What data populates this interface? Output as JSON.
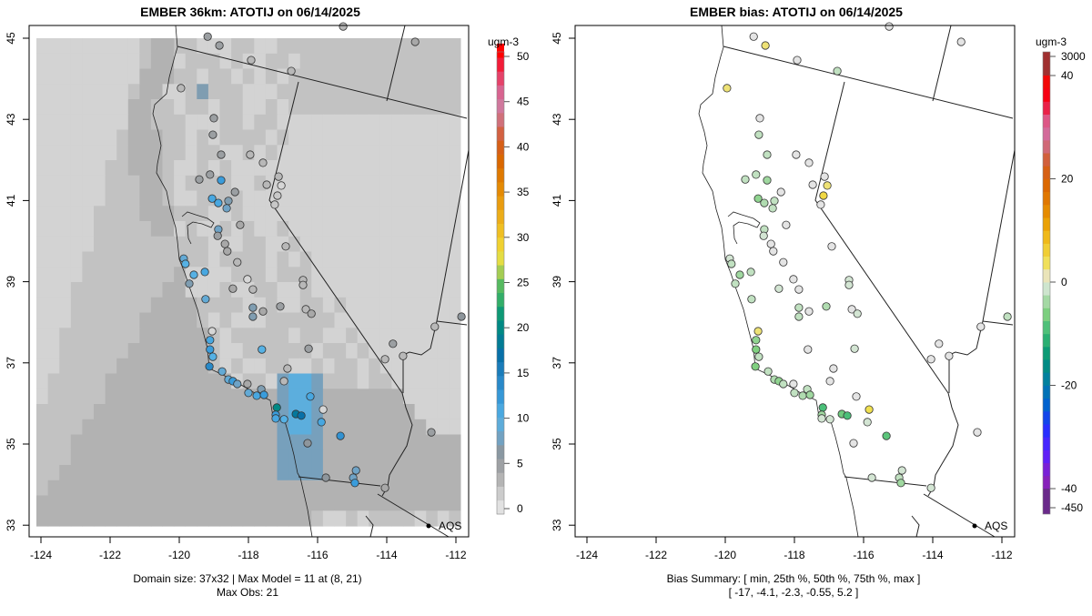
{
  "panels": {
    "left": {
      "title": "EMBER 36km: ATOTIJ on 06/14/2025",
      "colorbar_unit": "ugm-3",
      "footer_line1": "Domain size: 37x32 | Max Model = 11 at (8, 21)",
      "footer_line2": "Max Obs: 21"
    },
    "right": {
      "title": "EMBER bias: ATOTIJ on 06/14/2025",
      "colorbar_unit": "ugm-3",
      "footer_line1": "Bias Summary: [ min, 25th %, 50th %, 75th %, max ]",
      "footer_line2": "[ -17,   -4.1,   -2.3,   -0.55,   5.2 ]"
    }
  },
  "legend_label": "AQS",
  "chart_data": [
    {
      "type": "heatmap",
      "title": "EMBER 36km: ATOTIJ on 06/14/2025",
      "xlabel": "",
      "ylabel": "",
      "x_ticks": [
        "-124",
        "-122",
        "-120",
        "-118",
        "-116",
        "-114",
        "-112"
      ],
      "y_ticks": [
        "33",
        "35",
        "37",
        "39",
        "41",
        "43",
        "45"
      ],
      "xlim": [
        -124.2,
        -111.8
      ],
      "ylim": [
        32.9,
        45.3
      ],
      "grid_size": [
        37,
        32
      ],
      "max_model": 11,
      "max_obs": 21,
      "colorbar": {
        "label": "ugm-3",
        "range": [
          0,
          50
        ],
        "ticks": [
          "0",
          "5",
          "10",
          "15",
          "20",
          "25",
          "30",
          "35",
          "40",
          "45",
          "50"
        ]
      },
      "stations_fields": [
        "lon",
        "lat",
        "obs",
        "bias"
      ],
      "stations": [
        [
          -119.18,
          45.04,
          5,
          0
        ],
        [
          -118.84,
          44.82,
          5,
          3
        ],
        [
          -117.92,
          44.46,
          3,
          0
        ],
        [
          -116.76,
          44.19,
          3,
          -2
        ],
        [
          -115.26,
          45.29,
          3,
          0
        ],
        [
          -113.18,
          44.91,
          4,
          0
        ],
        [
          -119.95,
          43.77,
          3,
          3
        ],
        [
          -119.0,
          43.03,
          5,
          0
        ],
        [
          -119.03,
          42.62,
          5,
          -2
        ],
        [
          -118.79,
          42.13,
          5,
          -2
        ],
        [
          -117.95,
          42.13,
          3,
          0
        ],
        [
          -117.58,
          41.93,
          3,
          0
        ],
        [
          -119.42,
          41.52,
          5,
          -2
        ],
        [
          -119.11,
          41.64,
          5,
          -2
        ],
        [
          -118.79,
          41.5,
          12,
          -4
        ],
        [
          -117.13,
          41.59,
          3,
          0
        ],
        [
          -117.05,
          41.37,
          1,
          3
        ],
        [
          -117.16,
          41.12,
          2,
          5
        ],
        [
          -117.24,
          40.9,
          2,
          0
        ],
        [
          -117.47,
          41.39,
          3,
          0
        ],
        [
          -119.05,
          41.05,
          11,
          -5
        ],
        [
          -118.87,
          40.94,
          11,
          -3
        ],
        [
          -118.39,
          41.21,
          5,
          0
        ],
        [
          -118.58,
          40.99,
          7,
          -2
        ],
        [
          -118.63,
          40.81,
          8,
          -2
        ],
        [
          -118.24,
          40.4,
          4,
          0
        ],
        [
          -118.87,
          40.29,
          8,
          -2
        ],
        [
          -118.89,
          40.13,
          5,
          -1
        ],
        [
          -118.68,
          39.93,
          4,
          0
        ],
        [
          -118.61,
          39.75,
          4,
          0
        ],
        [
          -118.32,
          39.48,
          3,
          0
        ],
        [
          -116.92,
          39.87,
          3,
          0
        ],
        [
          -119.87,
          39.57,
          9,
          -1
        ],
        [
          -119.82,
          39.44,
          10,
          -2
        ],
        [
          -119.58,
          39.17,
          10,
          -4
        ],
        [
          -119.26,
          39.24,
          11,
          -2
        ],
        [
          -119.71,
          38.95,
          7,
          -2
        ],
        [
          -118.03,
          39.06,
          1,
          0
        ],
        [
          -118.45,
          38.83,
          4,
          -1
        ],
        [
          -117.87,
          38.81,
          3,
          0
        ],
        [
          -119.24,
          38.57,
          9,
          -2
        ],
        [
          -116.42,
          39.04,
          3,
          -1
        ],
        [
          -116.42,
          38.92,
          3,
          -1
        ],
        [
          -117.87,
          38.36,
          7,
          -2
        ],
        [
          -117.58,
          38.27,
          4,
          0
        ],
        [
          -117.87,
          38.14,
          7,
          -2
        ],
        [
          -117.08,
          38.39,
          5,
          -3
        ],
        [
          -116.34,
          38.32,
          3,
          0
        ],
        [
          -116.18,
          38.21,
          4,
          -1
        ],
        [
          -119.05,
          37.78,
          1,
          3
        ],
        [
          -119.11,
          37.56,
          11,
          -5
        ],
        [
          -119.11,
          37.33,
          12,
          -6
        ],
        [
          -119.03,
          37.15,
          10,
          -2
        ],
        [
          -119.13,
          36.91,
          14,
          -6
        ],
        [
          -118.76,
          36.79,
          9,
          -2
        ],
        [
          -117.61,
          37.33,
          10,
          0
        ],
        [
          -116.26,
          37.35,
          5,
          -1
        ],
        [
          -116.87,
          36.86,
          3,
          0
        ],
        [
          -116.97,
          36.55,
          3,
          0
        ],
        [
          -118.58,
          36.59,
          9,
          -3
        ],
        [
          -118.45,
          36.55,
          12,
          -5
        ],
        [
          -118.32,
          36.48,
          8,
          -2
        ],
        [
          -118.03,
          36.48,
          4,
          0
        ],
        [
          -118.0,
          36.26,
          9,
          -2
        ],
        [
          -117.63,
          36.35,
          7,
          -2
        ],
        [
          -117.76,
          36.19,
          11,
          -3
        ],
        [
          -117.55,
          36.21,
          12,
          -4
        ],
        [
          -116.21,
          36.17,
          11,
          0
        ],
        [
          -117.18,
          35.9,
          20,
          -9
        ],
        [
          -117.21,
          35.72,
          12,
          -4
        ],
        [
          -117.21,
          35.63,
          11,
          -1
        ],
        [
          -116.97,
          35.61,
          10,
          -1
        ],
        [
          -116.63,
          35.74,
          18,
          -7
        ],
        [
          -116.47,
          35.7,
          17,
          -9
        ],
        [
          -115.84,
          35.85,
          1,
          4
        ],
        [
          -115.89,
          35.54,
          11,
          -1
        ],
        [
          -115.34,
          35.2,
          13,
          -8
        ],
        [
          -116.29,
          35.02,
          6,
          0
        ],
        [
          -115.76,
          34.17,
          6,
          -1
        ],
        [
          -114.89,
          34.35,
          8,
          -1
        ],
        [
          -114.97,
          34.17,
          8,
          -2
        ],
        [
          -114.92,
          34.04,
          12,
          -4
        ],
        [
          -114.05,
          33.92,
          4,
          -1
        ],
        [
          -112.71,
          35.29,
          5,
          0
        ],
        [
          -111.84,
          38.14,
          6,
          -2
        ],
        [
          -112.61,
          37.89,
          3,
          0
        ],
        [
          -113.82,
          37.47,
          5,
          0
        ],
        [
          -114.05,
          37.09,
          3,
          0
        ],
        [
          -113.53,
          37.17,
          3,
          0
        ]
      ]
    },
    {
      "type": "scatter",
      "title": "EMBER bias: ATOTIJ on 06/14/2025",
      "x_ticks": [
        "-124",
        "-122",
        "-120",
        "-118",
        "-116",
        "-114",
        "-112"
      ],
      "y_ticks": [
        "33",
        "35",
        "37",
        "39",
        "41",
        "43",
        "45"
      ],
      "colorbar": {
        "label": "ugm-3",
        "ticks": [
          "-450",
          "-40",
          "-20",
          "0",
          "20",
          "40",
          "3000"
        ]
      },
      "bias_summary": {
        "min": -17,
        "p25": -4.1,
        "p50": -2.3,
        "p75": -0.55,
        "max": 5.2
      }
    }
  ]
}
